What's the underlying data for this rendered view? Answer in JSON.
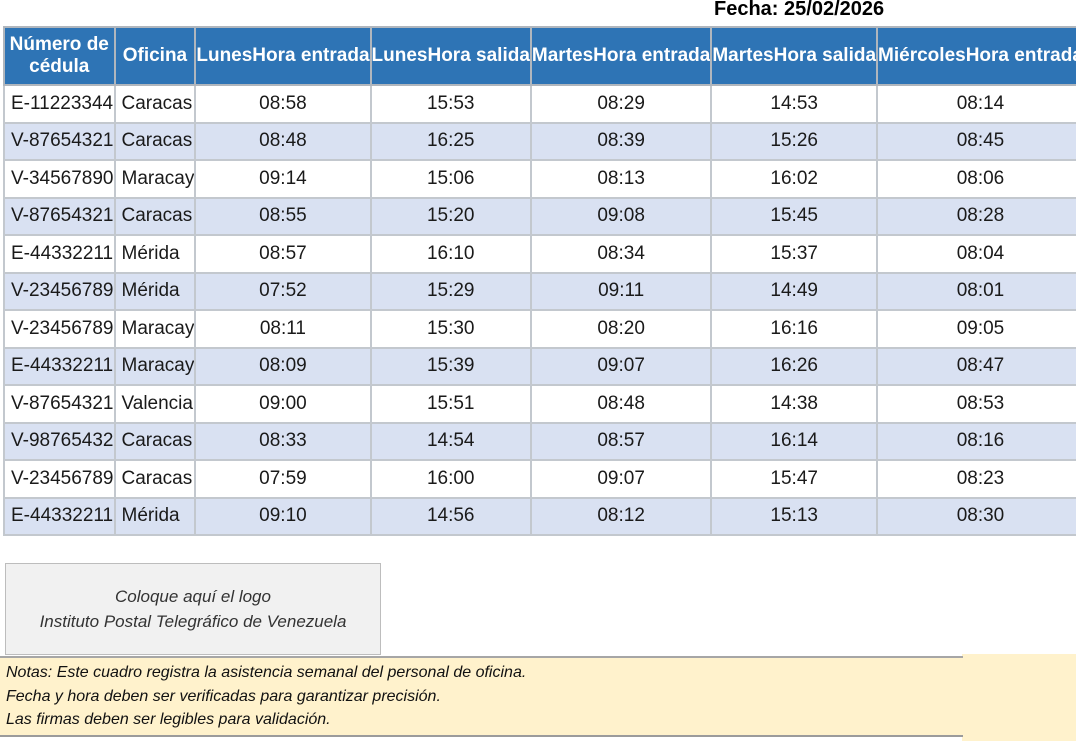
{
  "header": {
    "date_label": "Fecha: 25/02/2026"
  },
  "table": {
    "columns": [
      {
        "id": "cedula",
        "label": "Número de cédula",
        "align": "left",
        "clipped": false
      },
      {
        "id": "oficina",
        "label": "Oficina",
        "align": "left",
        "clipped": false
      },
      {
        "id": "lunes-entrada",
        "label": "LunesHora entrada",
        "align": "center",
        "clipped": true
      },
      {
        "id": "lunes-salida",
        "label": "LunesHora salida",
        "align": "center",
        "clipped": true
      },
      {
        "id": "martes-entrada",
        "label": "MartesHora entrada",
        "align": "center",
        "clipped": true
      },
      {
        "id": "martes-salida",
        "label": "MartesHora salida",
        "align": "center",
        "clipped": true
      },
      {
        "id": "miercoles-entrada",
        "label": "MiércolesHora entrada",
        "align": "center",
        "clipped": true
      }
    ],
    "rows": [
      [
        "E-11223344",
        "Caracas",
        "08:58",
        "15:53",
        "08:29",
        "14:53",
        "08:14"
      ],
      [
        "V-87654321",
        "Caracas",
        "08:48",
        "16:25",
        "08:39",
        "15:26",
        "08:45"
      ],
      [
        "V-34567890",
        "Maracay",
        "09:14",
        "15:06",
        "08:13",
        "16:02",
        "08:06"
      ],
      [
        "V-87654321",
        "Caracas",
        "08:55",
        "15:20",
        "09:08",
        "15:45",
        "08:28"
      ],
      [
        "E-44332211",
        "Mérida",
        "08:57",
        "16:10",
        "08:34",
        "15:37",
        "08:04"
      ],
      [
        "V-23456789",
        "Mérida",
        "07:52",
        "15:29",
        "09:11",
        "14:49",
        "08:01"
      ],
      [
        "V-23456789",
        "Maracay",
        "08:11",
        "15:30",
        "08:20",
        "16:16",
        "09:05"
      ],
      [
        "E-44332211",
        "Maracay",
        "08:09",
        "15:39",
        "09:07",
        "16:26",
        "08:47"
      ],
      [
        "V-87654321",
        "Valencia",
        "09:00",
        "15:51",
        "08:48",
        "14:38",
        "08:53"
      ],
      [
        "V-98765432",
        "Caracas",
        "08:33",
        "14:54",
        "08:57",
        "16:14",
        "08:16"
      ],
      [
        "V-23456789",
        "Caracas",
        "07:59",
        "16:00",
        "09:07",
        "15:47",
        "08:23"
      ],
      [
        "E-44332211",
        "Mérida",
        "09:10",
        "14:56",
        "08:12",
        "15:13",
        "08:30"
      ]
    ]
  },
  "logo_box": {
    "line1": "Coloque aquí el logo",
    "line2": "Instituto Postal Telegráfico de Venezuela"
  },
  "notes": {
    "lines": [
      "Notas: Este cuadro registra la asistencia semanal del personal de oficina.",
      "Fecha y hora deben ser verificadas para garantizar precisión.",
      "Las firmas deben ser legibles para validación."
    ]
  },
  "colors": {
    "header_bg": "#2e74b5",
    "header_text": "#ffffff",
    "row_alt_bg": "#d9e1f2",
    "notes_bg": "#fff2cc",
    "logo_box_bg": "#f1f1f1",
    "grid_border": "#c3c8ce"
  }
}
